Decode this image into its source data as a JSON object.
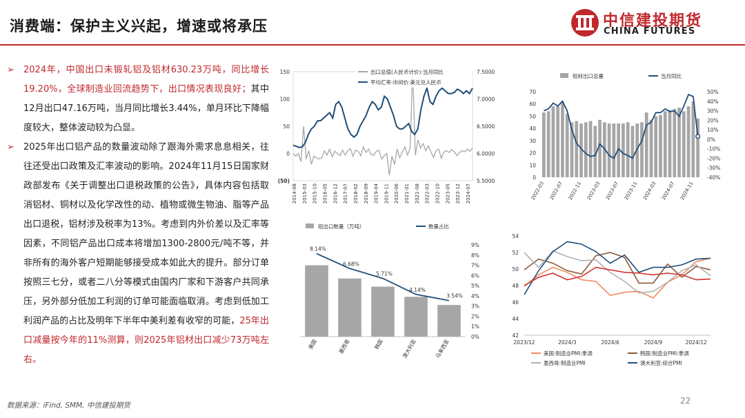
{
  "header": {
    "title": "消费端：保护主义兴起，增速或将承压",
    "logo_cn": "中信建投期货",
    "logo_en": "CHINA FUTURES"
  },
  "bullets": [
    {
      "marker": "➢",
      "segments": [
        {
          "text": "2024年，中国出口未锻轧铝及铝材630.23万吨，同比增长19.20%，全球制造业回流趋势下，出口情况表现良好；",
          "red": true
        },
        {
          "text": "其中12月出口47.16万吨，当月同比增长3.44%，单月环比下降幅度较大，整体波动较为凸显。",
          "red": false
        }
      ]
    },
    {
      "marker": "➢",
      "segments": [
        {
          "text": "2025年出口铝产品的数量波动除了跟海外需求息息相关，往往还受出口政策及汇率波动的影响。2024年11月15日国家财政部发布《关于调整出口退税政策的公告》，具体内容包括取消铝材、铜材以及化学改性的动、植物或微生物油、脂等产品出口退税，铝材涉及税率为13%。考虑到内外价差以及汇率等因素，不同铝产品出口成本将增加1300-2800元/吨不等，并非所有的海外客户短期能够接受成本如此大的提升。部分订单按照三七分，或者二八分等模式由国内厂家和下游客户共同承压，另外部分低加工利润的订单可能面临取消。考虑到低加工利润产品的占比及明年下半年中美利差有收窄的可能，",
          "red": false
        },
        {
          "text": "25年出口减量按今年的11%测算，则2025年铝材出口减少73万吨左右。",
          "red": true
        }
      ]
    }
  ],
  "footer": {
    "source": "数据来源：iFind, SMM, 中信建投期货",
    "page": "22"
  },
  "chart_data": [
    {
      "id": "export-value-vs-fx",
      "type": "line",
      "series": [
        {
          "name": "出口总值(人民币计价):当月同比",
          "axis": "left",
          "color": "#a6a6a6"
        },
        {
          "name": "平均汇率:中间价:美元兑人民币",
          "axis": "right",
          "color": "#1f4e79"
        }
      ],
      "x_ticks": [
        "2014-08",
        "2015-03",
        "2015-10",
        "2016-05",
        "2016-12",
        "2017-07",
        "2018-02",
        "2018-09",
        "2019-04",
        "2019-11",
        "2020-06",
        "2021-01",
        "2021-08",
        "2022-03",
        "2022-10",
        "2023-05",
        "2023-12",
        "2024-07"
      ],
      "y_left_ticks": [
        "150",
        "100",
        "50",
        "0",
        "(50)"
      ],
      "y_left_range": [
        -50,
        150
      ],
      "y_right_ticks": [
        "7.5000",
        "7.0000",
        "6.5000",
        "6.0000",
        "5.5000"
      ],
      "y_right_range": [
        5.5,
        7.5
      ],
      "fx_values": [
        6.15,
        6.13,
        6.11,
        6.12,
        6.2,
        6.35,
        6.45,
        6.5,
        6.6,
        6.6,
        6.65,
        6.7,
        6.75,
        6.65,
        6.9,
        6.95,
        6.85,
        6.65,
        6.45,
        6.35,
        6.3,
        6.35,
        6.5,
        6.6,
        6.7,
        6.85,
        6.95,
        6.9,
        6.8,
        6.85,
        7.05,
        7.0,
        6.85,
        6.7,
        6.5,
        6.45,
        6.45,
        6.5,
        6.55,
        6.4,
        6.35,
        6.45,
        6.8,
        7.05,
        7.2,
        6.95,
        6.9,
        7.05,
        7.15,
        7.2,
        7.15,
        7.1,
        7.1,
        7.12,
        7.18,
        7.15,
        7.1,
        7.15,
        7.1,
        7.2
      ],
      "yoy_values": [
        0,
        -5,
        0,
        -15,
        50,
        -10,
        5,
        -20,
        -5,
        -8,
        -10,
        -8,
        5,
        -3,
        8,
        -6,
        4,
        0,
        -4,
        6,
        -3,
        5,
        9,
        -5,
        6,
        4,
        -4,
        12,
        2,
        8,
        -2,
        -3,
        4,
        6,
        -10,
        -4,
        0,
        -40,
        -5,
        -20,
        8,
        -8,
        3,
        12,
        -3,
        10,
        155,
        -3,
        25,
        10,
        18,
        5,
        14,
        3,
        -7,
        5,
        8,
        -9,
        3,
        5,
        2,
        7,
        3,
        -4,
        2,
        5,
        3,
        8,
        4,
        10
      ]
    },
    {
      "id": "aluminum-export-volume",
      "type": "bar",
      "series": [
        {
          "name": "铝材出口总量",
          "axis": "left",
          "type": "bar",
          "color": "#a6a6a6"
        },
        {
          "name": "当月同比",
          "axis": "right",
          "type": "line",
          "color": "#1f4e79"
        }
      ],
      "x_ticks": [
        "2022-03",
        "2022-07",
        "2022-11",
        "2023-03",
        "2023-07",
        "2023-11",
        "2024-03",
        "2024-07",
        "2024-11"
      ],
      "y_left_ticks": [
        "70",
        "60",
        "50",
        "40",
        "30",
        "20",
        "10",
        "0"
      ],
      "y_left_range": [
        0,
        70
      ],
      "y_right_ticks": [
        "50%",
        "40%",
        "30%",
        "20%",
        "10%",
        "0%",
        "-10%",
        "-20%",
        "-30%",
        "-40%"
      ],
      "y_right_range": [
        -40,
        50
      ],
      "volume_values": [
        53,
        54,
        58,
        58,
        62,
        52,
        45,
        46,
        44,
        45,
        46,
        42,
        47,
        45,
        44,
        44,
        44,
        44,
        45,
        42,
        44,
        45,
        53,
        47,
        50,
        51,
        54,
        55,
        56,
        57,
        54,
        58,
        62,
        48
      ],
      "yoy_values": [
        30,
        32,
        38,
        35,
        40,
        30,
        10,
        -4,
        -10,
        -15,
        -18,
        -17,
        -5,
        -10,
        -17,
        -20,
        -10,
        -15,
        -17,
        -20,
        -10,
        -2,
        15,
        18,
        28,
        28,
        32,
        29,
        30,
        24,
        35,
        47,
        45,
        3
      ]
    },
    {
      "id": "export-by-country",
      "type": "bar",
      "series": [
        {
          "name": "铝出口数量（万吨）",
          "axis": "left",
          "type": "bar",
          "color": "#a6a6a6"
        },
        {
          "name": "数量占比",
          "axis": "right",
          "type": "line",
          "color": "#1f4e79"
        }
      ],
      "categories": [
        "美国",
        "墨西哥",
        "韩国",
        "澳大利亚",
        "马来西亚"
      ],
      "volume_values": [
        70,
        57,
        49,
        39,
        31
      ],
      "share_values": [
        8.14,
        6.68,
        5.71,
        4.14,
        3.54
      ],
      "share_labels": [
        "8.14%",
        "6.68%",
        "5.71%",
        "4.14%",
        "3.54%"
      ],
      "y_right_ticks": [
        "9%",
        "8%",
        "7%",
        "6%",
        "5%",
        "4%",
        "3%",
        "2%",
        "1%",
        "0%"
      ],
      "y_right_range": [
        0,
        9
      ],
      "y_left_range": [
        0,
        90
      ]
    },
    {
      "id": "manufacturing-pmi",
      "type": "line",
      "x_ticks": [
        "2023/12",
        "2024/3",
        "2024/6",
        "2024/9",
        "2024/12"
      ],
      "y_ticks": [
        "54",
        "52",
        "50",
        "48",
        "46",
        "44",
        "42"
      ],
      "y_range": [
        42,
        54
      ],
      "series": [
        {
          "name": "美国:制造业PMI:季调",
          "color": "#f08a5d",
          "values": [
            47.9,
            49.3,
            50.2,
            49.6,
            48.7,
            48.5,
            46.8,
            47.2,
            47.3,
            46.5,
            48.4,
            49.3,
            50.9,
            51.3
          ]
        },
        {
          "name": "韩国:制造业PMI:季调",
          "color": "#8b5a3c",
          "values": [
            49.9,
            51.2,
            50.7,
            49.8,
            49.4,
            51.6,
            52.0,
            51.4,
            48.3,
            48.3,
            50.6,
            49.0,
            50.3,
            49.9
          ]
        },
        {
          "name": "墨西哥:制造业PMI",
          "color": "#b0b0b0",
          "values": [
            52.0,
            50.2,
            52.2,
            51.5,
            51.0,
            51.1,
            49.6,
            48.5,
            47.1,
            47.3,
            48.4,
            49.8,
            50.5,
            49.2
          ]
        },
        {
          "name": "澳大利亚:综合PMI",
          "color": "#1f4e79",
          "values": [
            46.9,
            49.8,
            52.1,
            53.3,
            53.0,
            52.1,
            50.7,
            51.7,
            49.6,
            50.2,
            50.2,
            50.5,
            51.2,
            51.3
          ]
        },
        {
          "name": "",
          "color": "#d0312d",
          "values": [
            48.0,
            49.0,
            49.5,
            48.7,
            49.1,
            50.2,
            49.9,
            49.6,
            49.5,
            49.3,
            49.5,
            49.3,
            48.7,
            48.8
          ]
        }
      ]
    }
  ]
}
